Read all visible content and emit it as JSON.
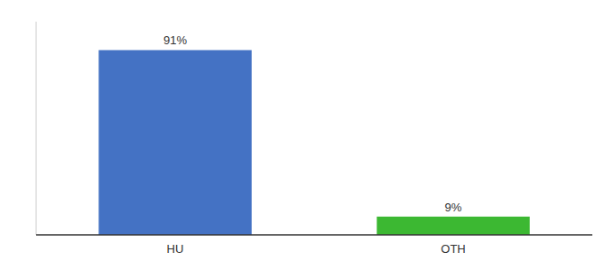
{
  "chart_data": {
    "type": "bar",
    "categories": [
      "HU",
      "OTH"
    ],
    "values": [
      91,
      9
    ],
    "value_labels": [
      "91%",
      "9%"
    ],
    "colors": [
      "#4472c4",
      "#3cb832"
    ],
    "data_labels": true,
    "ylim": [
      0,
      105
    ],
    "tick_labels": "x"
  }
}
